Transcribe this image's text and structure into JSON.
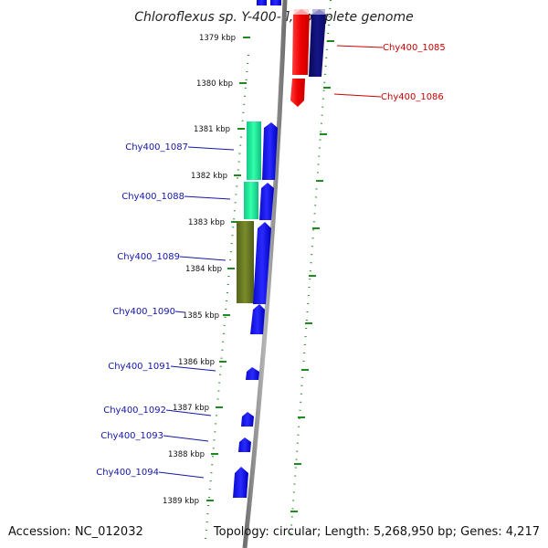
{
  "title": "Chloroflexus sp. Y-400-fl, complete genome",
  "accession": "Accession: NC_012032",
  "topology": "Topology: circular; Length: 5,268,950 bp; Genes: 4,217",
  "ticks": [
    "1379 kbp",
    "1380 kbp",
    "1381 kbp",
    "1382 kbp",
    "1383 kbp",
    "1384 kbp",
    "1385 kbp",
    "1386 kbp",
    "1387 kbp",
    "1388 kbp",
    "1389 kbp"
  ],
  "genes_right": [
    "Chy400_1085",
    "Chy400_1086"
  ],
  "genes_left": [
    "Chy400_1087",
    "Chy400_1088",
    "Chy400_1089",
    "Chy400_1090",
    "Chy400_1091",
    "Chy400_1092",
    "Chy400_1093",
    "Chy400_1094"
  ],
  "colors": {
    "backbone": "#8a8a8a",
    "dotted_track": "#1f8a1f",
    "forward_gene": "#ee1111",
    "forward_dark": "#10106e",
    "reverse_gene": "#1111ee",
    "cog_teal": "#22dd99",
    "cog_olive": "#6b7a22",
    "label_right": "#cc0000",
    "label_left": "#1515aa"
  }
}
